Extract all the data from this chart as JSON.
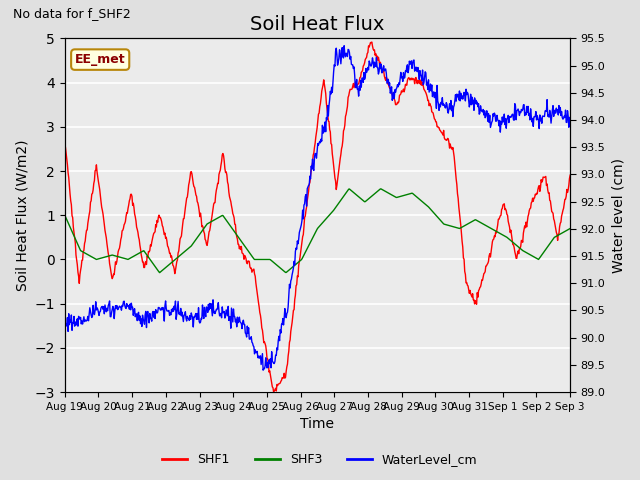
{
  "title": "Soil Heat Flux",
  "title_fontsize": 14,
  "no_data_text": "No data for f_SHF2",
  "ylabel_left": "Soil Heat Flux (W/m2)",
  "ylabel_right": "Water level (cm)",
  "xlabel": "Time",
  "ylim_left": [
    -3.0,
    5.0
  ],
  "ylim_right": [
    89.0,
    95.5
  ],
  "annotation_label": "EE_met",
  "x_tick_labels": [
    "Aug 19",
    "Aug 20",
    "Aug 21",
    "Aug 22",
    "Aug 23",
    "Aug 24",
    "Aug 25",
    "Aug 26",
    "Aug 27",
    "Aug 28",
    "Aug 29",
    "Aug 30",
    "Aug 31",
    "Sep 1",
    "Sep 2",
    "Sep 3"
  ],
  "legend_labels": [
    "SHF1",
    "SHF3",
    "WaterLevel_cm"
  ],
  "shf1_color": "red",
  "shf3_color": "green",
  "water_color": "blue",
  "background_color": "#e0e0e0",
  "plot_bg_color": "#ebebeb",
  "yticks_left": [
    -3.0,
    -2.0,
    -1.0,
    0.0,
    1.0,
    2.0,
    3.0,
    4.0,
    5.0
  ],
  "yticks_right": [
    89.0,
    89.5,
    90.0,
    90.5,
    91.0,
    91.5,
    92.0,
    92.5,
    93.0,
    93.5,
    94.0,
    94.5,
    95.0,
    95.5
  ],
  "n_days": 16,
  "shf1_kt": [
    0,
    0.45,
    1.0,
    1.5,
    2.1,
    2.5,
    3.0,
    3.5,
    4.0,
    4.5,
    5.0,
    5.5,
    6.0,
    6.3,
    6.6,
    7.0,
    7.4,
    7.8,
    8.2,
    8.6,
    9.0,
    9.3,
    9.7,
    10.1,
    10.5,
    10.9,
    11.3,
    11.8,
    12.3,
    12.7,
    13.0,
    13.5,
    13.9,
    14.3,
    14.8,
    15.2,
    15.6,
    16.0
  ],
  "shf1_kv": [
    2.7,
    -0.5,
    2.1,
    -0.5,
    1.5,
    -0.2,
    1.0,
    -0.3,
    2.0,
    0.3,
    2.4,
    0.3,
    -0.3,
    -1.8,
    -3.0,
    -2.6,
    -0.2,
    2.0,
    4.1,
    1.6,
    3.8,
    4.0,
    4.9,
    4.2,
    3.5,
    4.1,
    4.0,
    3.0,
    2.5,
    -0.5,
    -1.0,
    0.2,
    1.3,
    0.0,
    1.3,
    1.9,
    0.5,
    1.9
  ],
  "shf3_kt": [
    0,
    0.5,
    1.0,
    1.5,
    2.0,
    2.5,
    3.0,
    3.5,
    4.0,
    4.5,
    5.0,
    5.5,
    6.0,
    6.5,
    7.0,
    7.5,
    8.0,
    8.5,
    9.0,
    9.5,
    10.0,
    10.5,
    11.0,
    11.5,
    12.0,
    12.5,
    13.0,
    13.5,
    14.0,
    14.5,
    15.0,
    15.5,
    16.0
  ],
  "shf3_kv": [
    1.0,
    0.2,
    0.0,
    0.1,
    0.0,
    0.2,
    -0.3,
    0.0,
    0.3,
    0.8,
    1.0,
    0.5,
    0.0,
    0.0,
    -0.3,
    0.0,
    0.7,
    1.1,
    1.6,
    1.3,
    1.6,
    1.4,
    1.5,
    1.2,
    0.8,
    0.7,
    0.9,
    0.7,
    0.5,
    0.2,
    0.0,
    0.5,
    0.7
  ],
  "water_kt": [
    0,
    0.5,
    1.0,
    1.5,
    2.0,
    2.5,
    3.0,
    3.5,
    4.0,
    4.5,
    5.0,
    5.5,
    5.8,
    6.0,
    6.3,
    6.6,
    7.0,
    7.3,
    7.6,
    8.0,
    8.3,
    8.6,
    9.0,
    9.3,
    9.6,
    10.0,
    10.4,
    10.7,
    11.0,
    11.4,
    11.8,
    12.2,
    12.6,
    13.0,
    13.5,
    14.0,
    14.5,
    15.0,
    15.5,
    16.0
  ],
  "water_kv": [
    90.3,
    90.3,
    90.5,
    90.5,
    90.6,
    90.3,
    90.5,
    90.5,
    90.3,
    90.5,
    90.5,
    90.3,
    90.1,
    89.8,
    89.5,
    89.5,
    90.5,
    91.5,
    92.5,
    93.5,
    94.0,
    95.2,
    95.2,
    94.5,
    95.0,
    95.0,
    94.5,
    94.8,
    95.0,
    94.8,
    94.3,
    94.2,
    94.5,
    94.3,
    94.0,
    94.0,
    94.2,
    94.0,
    94.2,
    94.0
  ]
}
